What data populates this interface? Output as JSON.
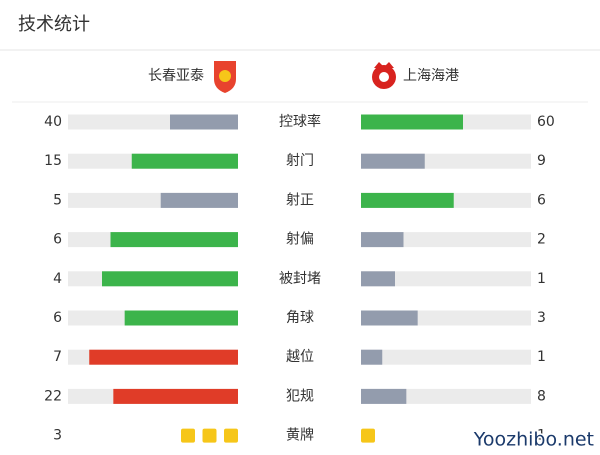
{
  "header": {
    "title": "技术统计"
  },
  "teams": {
    "home": "长春亚泰",
    "away": "上海海港"
  },
  "stats": [
    {
      "label": "控球率",
      "home": 40,
      "away": 60,
      "home_color": "#939cad",
      "away_color": "#3cb44b"
    },
    {
      "label": "射门",
      "home": 15,
      "away": 9,
      "home_color": "#3cb44b",
      "away_color": "#939cad"
    },
    {
      "label": "射正",
      "home": 5,
      "away": 6,
      "home_color": "#939cad",
      "away_color": "#3cb44b"
    },
    {
      "label": "射偏",
      "home": 6,
      "away": 2,
      "home_color": "#3cb44b",
      "away_color": "#939cad"
    },
    {
      "label": "被封堵",
      "home": 4,
      "away": 1,
      "home_color": "#3cb44b",
      "away_color": "#939cad"
    },
    {
      "label": "角球",
      "home": 6,
      "away": 3,
      "home_color": "#3cb44b",
      "away_color": "#939cad"
    },
    {
      "label": "越位",
      "home": 7,
      "away": 1,
      "home_color": "#e03c28",
      "away_color": "#939cad"
    },
    {
      "label": "犯规",
      "home": 22,
      "away": 8,
      "home_color": "#e03c28",
      "away_color": "#939cad"
    },
    {
      "label": "黄牌",
      "home": 3,
      "away": 1,
      "home_color": "#f6c619",
      "away_color": "#f6c619",
      "style": "squares"
    }
  ],
  "watermark": "Yoozhibo.net"
}
